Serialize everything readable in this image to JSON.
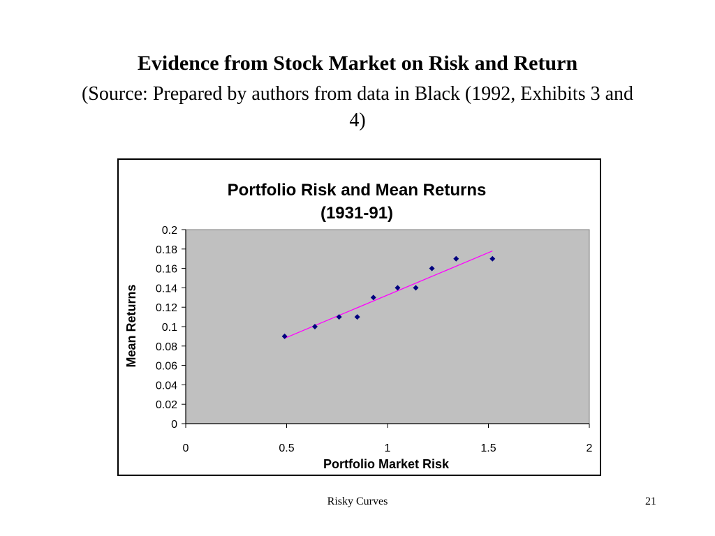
{
  "slide": {
    "title": "Evidence from Stock Market on Risk and Return",
    "subtitle": "(Source: Prepared by authors from data in Black (1992, Exhibits 3 and 4)",
    "footer_text": "Risky Curves",
    "page_number": "21"
  },
  "chart_data": {
    "type": "scatter",
    "title": "Portfolio Risk and Mean Returns (1931-91)",
    "title_lines": [
      "Portfolio Risk and Mean Returns",
      "(1931-91)"
    ],
    "xlabel": "Portfolio Market Risk",
    "ylabel": "Mean Returns",
    "xlim": [
      0,
      2
    ],
    "ylim": [
      0,
      0.2
    ],
    "x_ticks": [
      "0",
      "0.5",
      "1",
      "1.5",
      "2"
    ],
    "y_ticks": [
      "0",
      "0.02",
      "0.04",
      "0.06",
      "0.08",
      "0.1",
      "0.12",
      "0.14",
      "0.16",
      "0.18",
      "0.2"
    ],
    "grid": false,
    "legend": "none",
    "plot_background": "#c0c0c0",
    "marker_color": "#00007f",
    "trendline_color": "#ff00ff",
    "series": [
      {
        "x": [
          0.49,
          0.64,
          0.76,
          0.85,
          0.93,
          1.05,
          1.14,
          1.22,
          1.34,
          1.52
        ],
        "y": [
          0.09,
          0.1,
          0.11,
          0.11,
          0.13,
          0.14,
          0.14,
          0.16,
          0.17,
          0.17
        ]
      }
    ],
    "trendline": {
      "x": [
        0.49,
        1.52
      ],
      "y": [
        0.088,
        0.178
      ]
    }
  }
}
